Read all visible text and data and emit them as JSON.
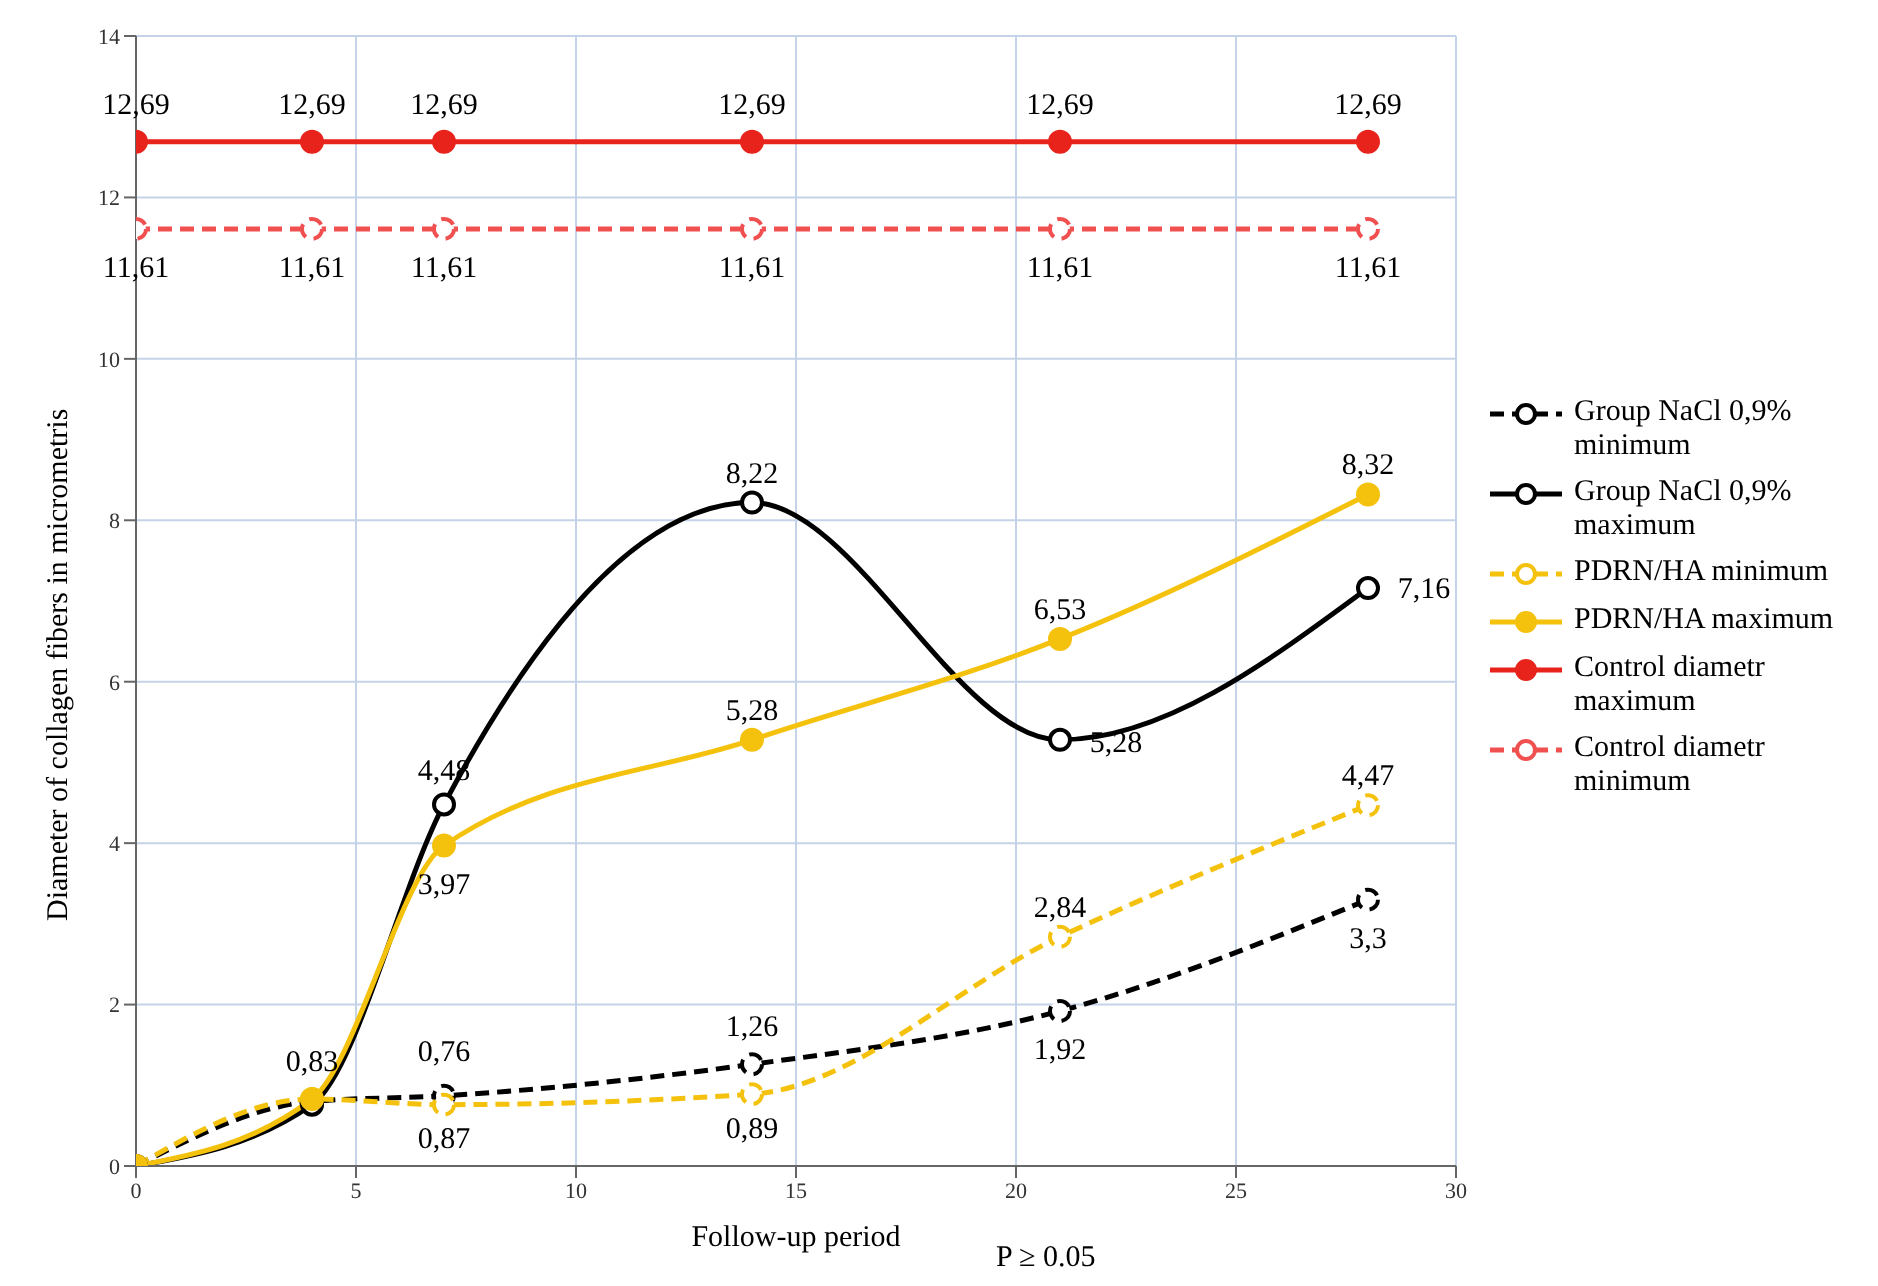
{
  "chart_data": {
    "type": "line",
    "xlabel": "Follow-up period",
    "ylabel": "Diameter of collagen fibers in micrometris",
    "x": [
      0,
      4,
      7,
      14,
      21,
      28
    ],
    "series": [
      {
        "name": "Group NaCl 0,9% minimum",
        "color": "#000000",
        "line_style": "dashed",
        "values": [
          0,
          0.8,
          0.87,
          1.26,
          1.92,
          3.3
        ],
        "value_labels": [
          null,
          null,
          "0,87",
          "1,26",
          "1,92",
          "3,3"
        ]
      },
      {
        "name": "Group NaCl 0,9% maximum",
        "color": "#000000",
        "line_style": "solid",
        "values": [
          0,
          0.76,
          4.48,
          8.22,
          5.28,
          7.16
        ],
        "value_labels": [
          null,
          null,
          "4,48",
          "8,22",
          "5,28",
          "7,16"
        ]
      },
      {
        "name": "PDRN/HA minimum",
        "color": "#f4c20d",
        "line_style": "dashed",
        "values": [
          0,
          0.83,
          0.76,
          0.89,
          2.84,
          4.47
        ],
        "value_labels": [
          null,
          null,
          "0,76",
          "0,89",
          "2,84",
          "4,47"
        ]
      },
      {
        "name": "PDRN/HA maximum",
        "color": "#f4c20d",
        "line_style": "solid",
        "values": [
          0,
          0.83,
          3.97,
          5.28,
          6.53,
          8.32
        ],
        "value_labels": [
          null,
          "0,83",
          "3,97",
          "5,28",
          "6,53",
          "8,32"
        ]
      },
      {
        "name": "Control diametr maximum",
        "color": "#e8231c",
        "line_style": "solid",
        "values": [
          12.69,
          12.69,
          12.69,
          12.69,
          12.69,
          12.69
        ],
        "value_labels": [
          "12,69",
          "12,69",
          "12,69",
          "12,69",
          "12,69",
          "12,69"
        ]
      },
      {
        "name": "Control diametr minimum",
        "color": "#f05050",
        "line_style": "dashed",
        "values": [
          11.61,
          11.61,
          11.61,
          11.61,
          11.61,
          11.61
        ],
        "value_labels": [
          "11,61",
          "11,61",
          "11,61",
          "11,61",
          "11,61",
          "11,61"
        ]
      }
    ],
    "xlim": [
      0,
      30
    ],
    "xticks": [
      0,
      5,
      10,
      15,
      20,
      25,
      30
    ],
    "ylim": [
      0,
      14
    ],
    "yticks": [
      0,
      2,
      4,
      6,
      8,
      10,
      12,
      14
    ],
    "grid": true,
    "legend": "right",
    "marker": "circle",
    "annotations": [
      "P ≥ 0.05"
    ]
  }
}
